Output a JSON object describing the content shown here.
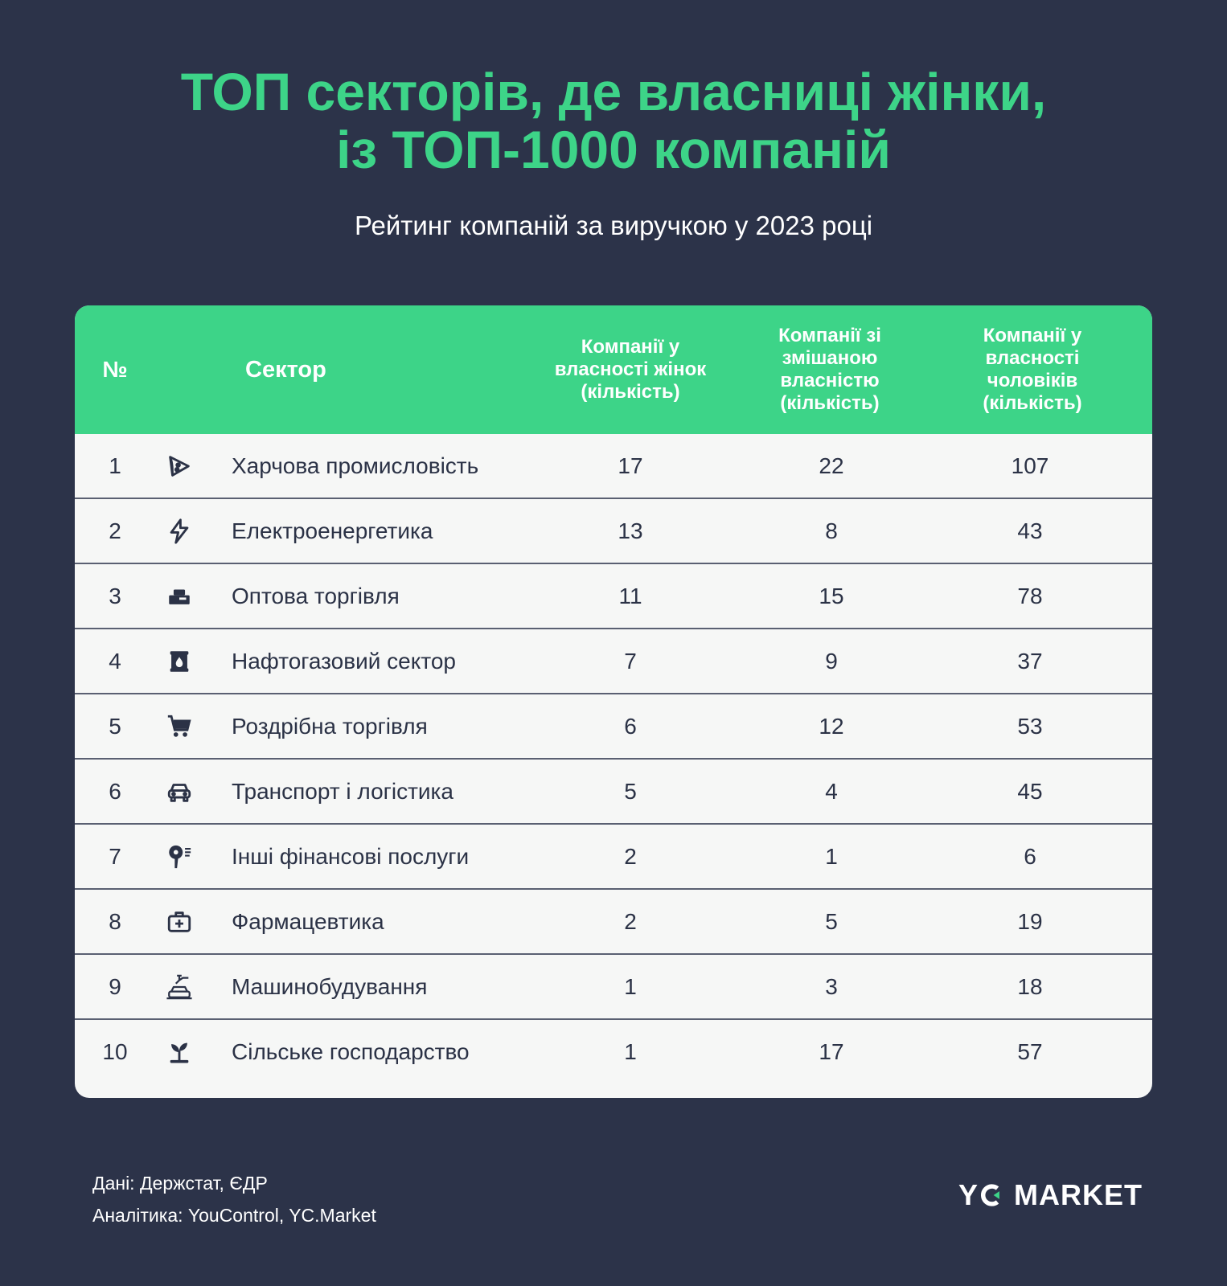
{
  "title": {
    "line1": "ТОП секторів, де власниці жінки,",
    "line2": "із ТОП-1000 компаній"
  },
  "subtitle": "Рейтинг компаній за виручкою у 2023 році",
  "table": {
    "headers": {
      "num": "№",
      "sector": "Сектор",
      "women": [
        "Компанії у",
        "власності жінок",
        "(кількість)"
      ],
      "mixed": [
        "Компанії зі",
        "змішаною",
        "власністю",
        "(кількість)"
      ],
      "men": [
        "Компанії у",
        "власності",
        "чоловіків",
        "(кількість)"
      ]
    },
    "rows": [
      {
        "num": "1",
        "icon": "pizza-icon",
        "sector": "Харчова промисловість",
        "women": "17",
        "mixed": "22",
        "men": "107"
      },
      {
        "num": "2",
        "icon": "lightning-icon",
        "sector": "Електроенергетика",
        "women": "13",
        "mixed": "8",
        "men": "43"
      },
      {
        "num": "3",
        "icon": "cash-register-icon",
        "sector": "Оптова торгівля",
        "women": "11",
        "mixed": "15",
        "men": "78"
      },
      {
        "num": "4",
        "icon": "oil-barrel-icon",
        "sector": "Нафтогазовий сектор",
        "women": "7",
        "mixed": "9",
        "men": "37"
      },
      {
        "num": "5",
        "icon": "shopping-cart-icon",
        "sector": "Роздрібна торгівля",
        "women": "6",
        "mixed": "12",
        "men": "53"
      },
      {
        "num": "6",
        "icon": "car-icon",
        "sector": "Транспорт і логістика",
        "women": "5",
        "mixed": "4",
        "men": "45"
      },
      {
        "num": "7",
        "icon": "hair-dryer-icon",
        "sector": "Інші фінансові послуги",
        "women": "2",
        "mixed": "1",
        "men": "6"
      },
      {
        "num": "8",
        "icon": "first-aid-kit-icon",
        "sector": "Фармацевтика",
        "women": "2",
        "mixed": "5",
        "men": "19"
      },
      {
        "num": "9",
        "icon": "car-factory-icon",
        "sector": "Машинобудування",
        "women": "1",
        "mixed": "3",
        "men": "18"
      },
      {
        "num": "10",
        "icon": "sprout-icon",
        "sector": "Сільське господарство",
        "women": "1",
        "mixed": "17",
        "men": "57"
      }
    ]
  },
  "footer": {
    "data_source": "Дані: Держстат, ЄДР",
    "analytics": "Аналітика: YouControl, YC.Market"
  },
  "logo": {
    "left": "Y",
    "right": "MARKET"
  },
  "colors": {
    "background": "#2c3349",
    "accent": "#3dd488",
    "table_bg": "#f6f7f6",
    "text_dark": "#2b3246"
  }
}
